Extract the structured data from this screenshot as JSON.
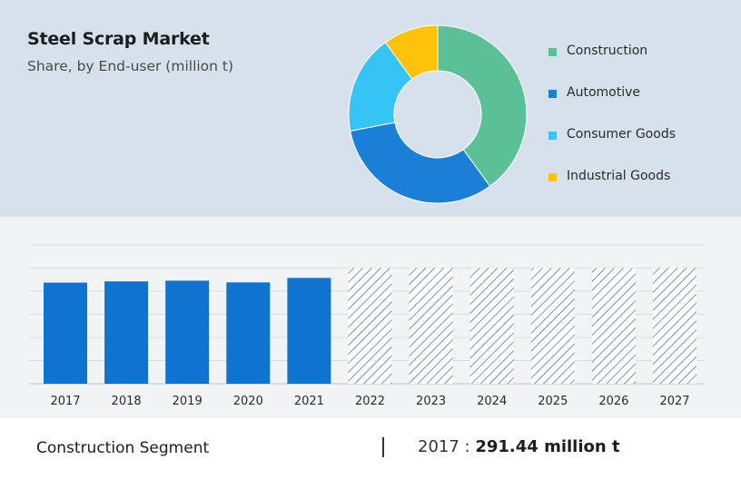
{
  "header": {
    "title": "Steel Scrap Market",
    "subtitle": "Share, by End-user (million t)"
  },
  "chart_data": [
    {
      "type": "pie",
      "donut": true,
      "slices": [
        {
          "name": "Construction",
          "value": 40,
          "color": "#5bc096"
        },
        {
          "name": "Automotive",
          "value": 32,
          "color": "#1a7fd6"
        },
        {
          "name": "Consumer Goods",
          "value": 18,
          "color": "#35c4f5"
        },
        {
          "name": "Industrial Goods",
          "value": 10,
          "color": "#fec208"
        }
      ],
      "legend_position": "right"
    },
    {
      "type": "bar",
      "categories": [
        "2017",
        "2018",
        "2019",
        "2020",
        "2021",
        "2022",
        "2023",
        "2024",
        "2025",
        "2026",
        "2027"
      ],
      "values": [
        291.44,
        295,
        297,
        292,
        305,
        null,
        null,
        null,
        null,
        null,
        null
      ],
      "forecast_from": "2022",
      "forecast_style": "hatched",
      "ylim": [
        0,
        400
      ],
      "grid": true,
      "bar_color": "#0f74cf",
      "forecast_color": "#2f5c86"
    }
  ],
  "footer": {
    "segment_label": "Construction Segment",
    "divider": "|",
    "year_prefix": "2017 :",
    "value": "291.44 million t"
  }
}
